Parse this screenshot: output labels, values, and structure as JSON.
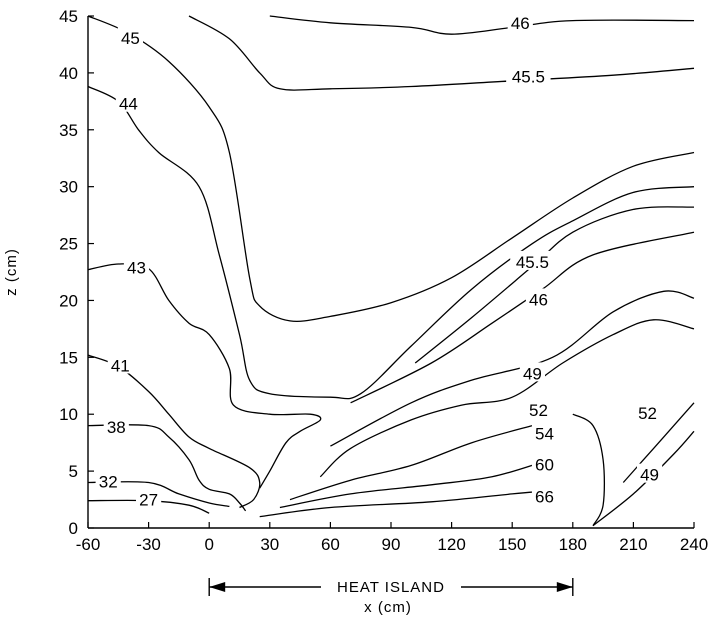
{
  "chart_data": {
    "type": "contour",
    "xlabel": "x (cm)",
    "ylabel": "z (cm)",
    "xlim": [
      -60,
      240
    ],
    "ylim": [
      0,
      45
    ],
    "xticks": [
      "-60",
      "-30",
      "0",
      "30",
      "60",
      "90",
      "120",
      "150",
      "180",
      "210",
      "240"
    ],
    "yticks": [
      "0",
      "5",
      "10",
      "15",
      "20",
      "25",
      "30",
      "35",
      "40",
      "45"
    ],
    "region_annotation": {
      "label": "HEAT ISLAND",
      "x_start": 0,
      "x_end": 180
    },
    "contours": [
      {
        "label": "46",
        "label_at": [
          154,
          44.3
        ],
        "points": [
          [
            30,
            45
          ],
          [
            60,
            44.4
          ],
          [
            100,
            44
          ],
          [
            120,
            43.4
          ],
          [
            150,
            44
          ],
          [
            180,
            44.6
          ],
          [
            240,
            44.6
          ]
        ]
      },
      {
        "label": "45.5",
        "label_at": [
          158,
          39.6
        ],
        "points": [
          [
            -10,
            45
          ],
          [
            10,
            43
          ],
          [
            25,
            40
          ],
          [
            35,
            38.6
          ],
          [
            60,
            38.6
          ],
          [
            100,
            38.8
          ],
          [
            150,
            39.3
          ],
          [
            200,
            39.8
          ],
          [
            240,
            40.4
          ]
        ]
      },
      {
        "label": "45",
        "label_at": [
          -39,
          43
        ],
        "points": [
          [
            -60,
            45
          ],
          [
            -40,
            43.5
          ],
          [
            -20,
            41
          ],
          [
            0,
            37
          ],
          [
            10,
            33
          ],
          [
            20,
            22
          ],
          [
            25,
            19.5
          ],
          [
            40,
            18.2
          ],
          [
            60,
            18.6
          ],
          [
            90,
            19.8
          ],
          [
            120,
            22
          ],
          [
            150,
            25.5
          ],
          [
            180,
            29
          ],
          [
            210,
            31.8
          ],
          [
            240,
            33
          ]
        ]
      },
      {
        "label": "44",
        "label_at": [
          -40,
          37.2
        ],
        "points": [
          [
            -60,
            38.8
          ],
          [
            -45,
            37.5
          ],
          [
            -35,
            35
          ],
          [
            -25,
            33
          ],
          [
            -5,
            30
          ],
          [
            5,
            24
          ],
          [
            15,
            17
          ],
          [
            20,
            13
          ],
          [
            30,
            11.8
          ],
          [
            60,
            11.5
          ],
          [
            75,
            11.8
          ],
          [
            100,
            16
          ],
          [
            130,
            21
          ],
          [
            160,
            25
          ],
          [
            180,
            27
          ],
          [
            210,
            29.5
          ],
          [
            240,
            30
          ]
        ]
      },
      {
        "label": "45.5",
        "label_at": [
          160,
          23.3
        ],
        "points": [
          [
            102,
            14.5
          ],
          [
            130,
            18.5
          ],
          [
            160,
            23
          ],
          [
            180,
            26
          ],
          [
            210,
            28
          ],
          [
            240,
            28.2
          ]
        ]
      },
      {
        "label": "43",
        "label_at": [
          -36,
          22.8
        ],
        "points": [
          [
            -60,
            22.7
          ],
          [
            -45,
            23.2
          ],
          [
            -30,
            22.8
          ],
          [
            -20,
            20
          ],
          [
            -10,
            18
          ],
          [
            0,
            17
          ],
          [
            10,
            14
          ],
          [
            12,
            10.8
          ],
          [
            30,
            10
          ],
          [
            50,
            10
          ],
          [
            55,
            9.5
          ],
          [
            45,
            8.5
          ],
          [
            38,
            7.5
          ],
          [
            30,
            5
          ],
          [
            25,
            3.5
          ]
        ]
      },
      {
        "label": "46",
        "label_at": [
          163,
          20
        ],
        "points": [
          [
            70,
            11
          ],
          [
            110,
            14.5
          ],
          [
            140,
            18
          ],
          [
            165,
            21
          ],
          [
            190,
            24
          ],
          [
            240,
            26
          ]
        ]
      },
      {
        "label": "41",
        "label_at": [
          -44,
          14.2
        ],
        "points": [
          [
            -60,
            15.2
          ],
          [
            -45,
            14.2
          ],
          [
            -30,
            12
          ],
          [
            -20,
            10
          ],
          [
            -10,
            8
          ],
          [
            0,
            7
          ],
          [
            20,
            5.3
          ],
          [
            25,
            4
          ],
          [
            22,
            2.5
          ],
          [
            15,
            1.8
          ]
        ]
      },
      {
        "label": "49",
        "label_at": [
          160,
          13.5
        ],
        "points": [
          [
            60,
            7.2
          ],
          [
            100,
            11
          ],
          [
            130,
            13
          ],
          [
            170,
            15
          ],
          [
            200,
            19
          ],
          [
            225,
            20.8
          ],
          [
            240,
            20.2
          ]
        ]
      },
      {
        "label": "38",
        "label_at": [
          -46,
          8.8
        ],
        "points": [
          [
            -60,
            9
          ],
          [
            -30,
            9
          ],
          [
            -20,
            8
          ],
          [
            -10,
            6
          ],
          [
            -5,
            4.2
          ],
          [
            0,
            3.4
          ],
          [
            10,
            3
          ],
          [
            15,
            2.2
          ],
          [
            18,
            1.5
          ]
        ]
      },
      {
        "label": "52",
        "label_at": [
          163,
          10.3
        ],
        "points": [
          [
            55,
            4.5
          ],
          [
            70,
            7
          ],
          [
            100,
            9.5
          ],
          [
            125,
            10.8
          ],
          [
            150,
            11.5
          ],
          [
            175,
            14.5
          ],
          [
            200,
            17
          ],
          [
            220,
            18.3
          ],
          [
            240,
            17.5
          ]
        ]
      },
      {
        "label": "32",
        "label_at": [
          -50,
          4
        ],
        "points": [
          [
            -60,
            4
          ],
          [
            -30,
            4
          ],
          [
            -15,
            3
          ],
          [
            0,
            2.2
          ],
          [
            10,
            1.9
          ]
        ]
      },
      {
        "label": "54",
        "label_at": [
          166,
          8.2
        ],
        "points": [
          [
            40,
            2.5
          ],
          [
            70,
            4.2
          ],
          [
            100,
            5.5
          ],
          [
            130,
            7.5
          ],
          [
            160,
            9
          ]
        ]
      },
      {
        "label": "27",
        "label_at": [
          -30,
          2.4
        ],
        "points": [
          [
            -60,
            2.4
          ],
          [
            -30,
            2.4
          ],
          [
            -10,
            2
          ],
          [
            0,
            1.3
          ]
        ]
      },
      {
        "label": "60",
        "label_at": [
          166,
          5.5
        ],
        "points": [
          [
            35,
            1.8
          ],
          [
            70,
            3
          ],
          [
            110,
            3.8
          ],
          [
            140,
            4.5
          ],
          [
            165,
            5.8
          ]
        ]
      },
      {
        "label": "66",
        "label_at": [
          166,
          2.7
        ],
        "points": [
          [
            25,
            1
          ],
          [
            60,
            1.8
          ],
          [
            110,
            2.3
          ],
          [
            150,
            3
          ],
          [
            163,
            3.2
          ]
        ]
      },
      {
        "label": "52",
        "label_at": [
          217,
          10
        ],
        "points": [
          [
            205,
            4
          ],
          [
            220,
            7
          ],
          [
            235,
            10
          ],
          [
            240,
            11
          ]
        ]
      },
      {
        "label": "49",
        "label_at": [
          218,
          4.6
        ],
        "points": [
          [
            190,
            0.2
          ],
          [
            210,
            3
          ],
          [
            230,
            6.5
          ],
          [
            240,
            8.5
          ]
        ]
      },
      {
        "label": "",
        "label_at": null,
        "points": [
          [
            180,
            10
          ],
          [
            190,
            9
          ],
          [
            195,
            6
          ],
          [
            195,
            2
          ],
          [
            190,
            0.2
          ]
        ]
      }
    ]
  }
}
